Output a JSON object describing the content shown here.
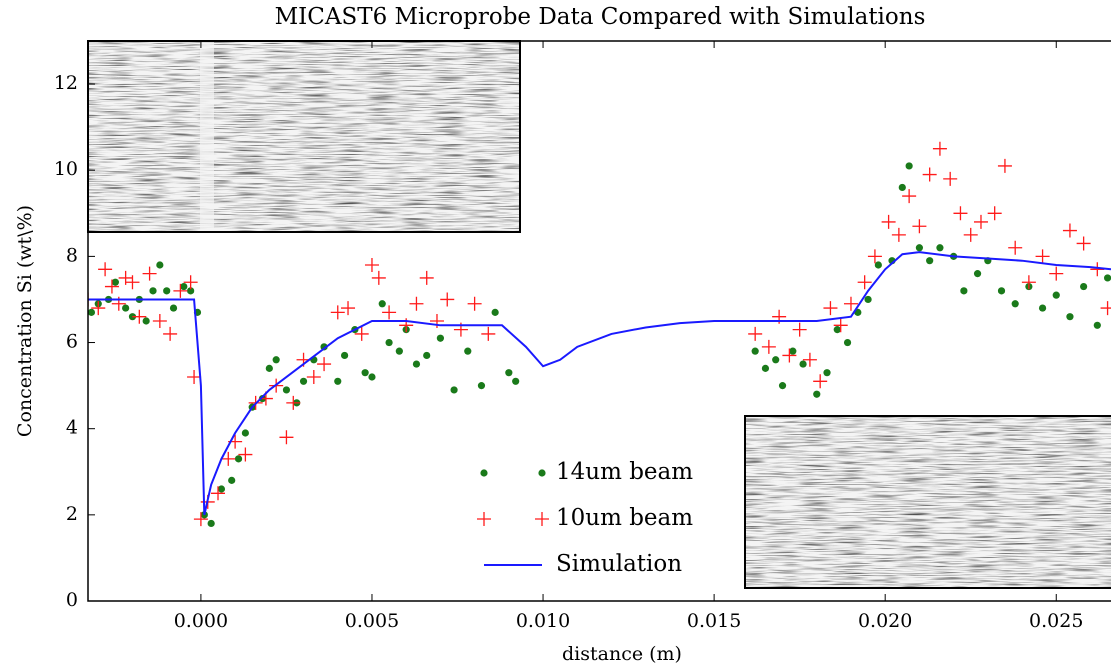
{
  "chart_data": {
    "type": "scatter",
    "title": "MICAST6 Microprobe Data Compared with Simulations",
    "x_label": "distance (m)",
    "y_label": "Concentration Si (wt\\%)",
    "xlim": [
      -0.0033,
      0.0266
    ],
    "ylim": [
      0,
      13
    ],
    "xticks": [
      {
        "value": 0,
        "label": "0.000"
      },
      0.005,
      {
        "value": 0.01,
        "label": "0.010"
      },
      0.015,
      {
        "value": 0.02,
        "label": "0.020"
      },
      0.025
    ],
    "yticks": [
      0,
      2,
      4,
      6,
      8,
      10,
      12
    ],
    "legend": "lower center",
    "series": [
      {
        "name": "14um beam",
        "type": "scatter",
        "marker": "circle",
        "color": "#1a7a1a",
        "x": [
          -0.0032,
          -0.003,
          -0.0027,
          -0.0025,
          -0.0022,
          -0.002,
          -0.0018,
          -0.0016,
          -0.0014,
          -0.0012,
          -0.001,
          -0.0008,
          -0.0005,
          -0.0003,
          -0.0001,
          0.0001,
          0.0003,
          0.0006,
          0.0009,
          0.0011,
          0.0013,
          0.0015,
          0.0018,
          0.002,
          0.0022,
          0.0025,
          0.0028,
          0.003,
          0.0033,
          0.0036,
          0.004,
          0.0042,
          0.0045,
          0.0048,
          0.005,
          0.0053,
          0.0055,
          0.0058,
          0.006,
          0.0063,
          0.0066,
          0.007,
          0.0074,
          0.0078,
          0.0082,
          0.0086,
          0.009,
          0.0092,
          0.0162,
          0.0165,
          0.0168,
          0.017,
          0.0173,
          0.0176,
          0.018,
          0.0183,
          0.0186,
          0.0189,
          0.0192,
          0.0195,
          0.0198,
          0.0202,
          0.0205,
          0.0207,
          0.021,
          0.0213,
          0.0216,
          0.022,
          0.0223,
          0.0227,
          0.023,
          0.0234,
          0.0238,
          0.0242,
          0.0246,
          0.025,
          0.0254,
          0.0258,
          0.0262,
          0.0265
        ],
        "values": [
          6.7,
          6.9,
          7.0,
          7.4,
          6.8,
          6.6,
          7.0,
          6.5,
          7.2,
          7.8,
          7.2,
          6.8,
          7.3,
          7.2,
          6.7,
          2.0,
          1.8,
          2.6,
          2.8,
          3.3,
          3.9,
          4.5,
          4.7,
          5.4,
          5.6,
          4.9,
          4.6,
          5.1,
          5.6,
          5.9,
          5.1,
          5.7,
          6.3,
          5.3,
          5.2,
          6.9,
          6.0,
          5.8,
          6.3,
          5.5,
          5.7,
          6.1,
          4.9,
          5.8,
          5.0,
          6.7,
          5.3,
          5.1,
          5.8,
          5.4,
          5.6,
          5.0,
          5.8,
          5.5,
          4.8,
          5.3,
          6.3,
          6.0,
          6.7,
          7.0,
          7.8,
          7.9,
          9.6,
          10.1,
          8.2,
          7.9,
          8.2,
          8.0,
          7.2,
          7.6,
          7.9,
          7.2,
          6.9,
          7.3,
          6.8,
          7.1,
          6.6,
          7.3,
          6.4,
          7.5
        ]
      },
      {
        "name": "10um beam",
        "type": "scatter",
        "marker": "plus",
        "color": "#ff1a1a",
        "x": [
          -0.0033,
          -0.003,
          -0.0028,
          -0.0026,
          -0.0024,
          -0.0022,
          -0.002,
          -0.0018,
          -0.0015,
          -0.0012,
          -0.0009,
          -0.0006,
          -0.0003,
          -0.0002,
          0.0,
          0.0002,
          0.0005,
          0.0008,
          0.001,
          0.0013,
          0.0016,
          0.0019,
          0.0022,
          0.0025,
          0.0027,
          0.003,
          0.0033,
          0.0036,
          0.004,
          0.0043,
          0.0047,
          0.005,
          0.0052,
          0.0055,
          0.006,
          0.0063,
          0.0066,
          0.0069,
          0.0072,
          0.0076,
          0.008,
          0.0084,
          0.0162,
          0.0166,
          0.0169,
          0.0172,
          0.0175,
          0.0178,
          0.0181,
          0.0184,
          0.0187,
          0.019,
          0.0194,
          0.0197,
          0.0201,
          0.0204,
          0.0207,
          0.021,
          0.0213,
          0.0216,
          0.0219,
          0.0222,
          0.0225,
          0.0228,
          0.0232,
          0.0235,
          0.0238,
          0.0242,
          0.0246,
          0.025,
          0.0254,
          0.0258,
          0.0262,
          0.0265
        ],
        "values": [
          7.0,
          6.8,
          7.7,
          7.3,
          6.9,
          7.5,
          7.4,
          6.6,
          7.6,
          6.5,
          6.2,
          7.2,
          7.4,
          5.2,
          1.9,
          2.3,
          2.5,
          3.3,
          3.7,
          3.4,
          4.6,
          4.7,
          5.0,
          3.8,
          4.6,
          5.6,
          5.2,
          5.5,
          6.7,
          6.8,
          6.2,
          7.8,
          7.5,
          6.7,
          6.4,
          6.9,
          7.5,
          6.5,
          7.0,
          6.3,
          6.9,
          6.2,
          6.2,
          5.9,
          6.6,
          5.7,
          6.3,
          5.6,
          5.1,
          6.8,
          6.4,
          6.9,
          7.4,
          8.0,
          8.8,
          8.5,
          9.4,
          8.7,
          9.9,
          10.5,
          9.8,
          9.0,
          8.5,
          8.8,
          9.0,
          10.1,
          8.2,
          7.4,
          8.0,
          7.6,
          8.6,
          8.3,
          7.7,
          6.8
        ]
      },
      {
        "name": "Simulation",
        "type": "line",
        "color": "#1a1aff",
        "x": [
          -0.0033,
          -0.002,
          -0.001,
          -0.0002,
          0.0,
          0.0001,
          0.0003,
          0.0006,
          0.001,
          0.0015,
          0.002,
          0.003,
          0.004,
          0.005,
          0.006,
          0.007,
          0.008,
          0.0088,
          0.0095,
          0.01,
          0.0105,
          0.011,
          0.012,
          0.013,
          0.014,
          0.015,
          0.016,
          0.017,
          0.018,
          0.019,
          0.0195,
          0.02,
          0.0205,
          0.021,
          0.022,
          0.023,
          0.024,
          0.025,
          0.026,
          0.0266
        ],
        "values": [
          7.0,
          7.0,
          7.0,
          7.0,
          5.0,
          2.0,
          2.7,
          3.3,
          3.9,
          4.5,
          4.9,
          5.5,
          6.1,
          6.5,
          6.5,
          6.4,
          6.4,
          6.4,
          5.9,
          5.45,
          5.6,
          5.9,
          6.2,
          6.35,
          6.45,
          6.5,
          6.5,
          6.5,
          6.5,
          6.6,
          7.2,
          7.7,
          8.05,
          8.1,
          8.0,
          7.95,
          7.9,
          7.8,
          7.75,
          7.7
        ]
      }
    ]
  }
}
